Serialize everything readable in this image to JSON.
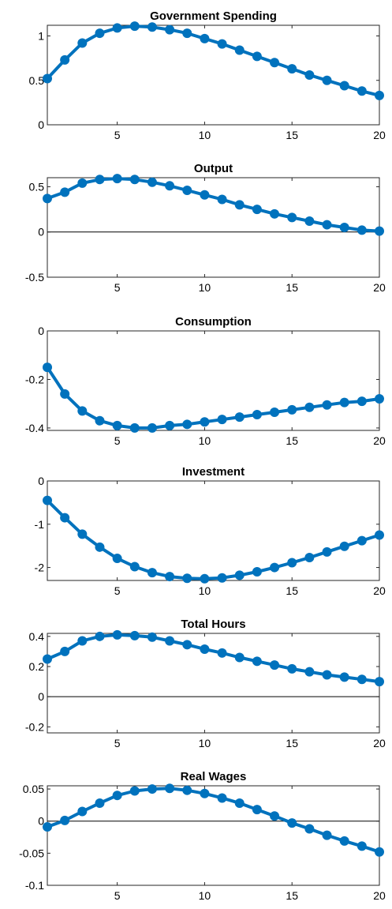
{
  "colors": {
    "series": "#0072BD",
    "axis": "#262626"
  },
  "chart_data": [
    {
      "type": "line",
      "title": "Government Spending",
      "xlim": [
        1,
        20
      ],
      "ylim": [
        0,
        1.12
      ],
      "xticks": [
        5,
        10,
        15,
        20
      ],
      "yticks": [
        0,
        0.5,
        1
      ],
      "ytick_labels": [
        "0",
        "0.5",
        "1"
      ],
      "zero_line": false,
      "x": [
        1,
        2,
        3,
        4,
        5,
        6,
        7,
        8,
        9,
        10,
        11,
        12,
        13,
        14,
        15,
        16,
        17,
        18,
        19,
        20
      ],
      "values": [
        0.52,
        0.73,
        0.92,
        1.03,
        1.09,
        1.11,
        1.1,
        1.07,
        1.03,
        0.97,
        0.91,
        0.84,
        0.77,
        0.7,
        0.63,
        0.56,
        0.5,
        0.44,
        0.38,
        0.33
      ]
    },
    {
      "type": "line",
      "title": "Output",
      "xlim": [
        1,
        20
      ],
      "ylim": [
        -0.5,
        0.6
      ],
      "xticks": [
        5,
        10,
        15,
        20
      ],
      "yticks": [
        -0.5,
        0,
        0.5
      ],
      "ytick_labels": [
        "-0.5",
        "0",
        "0.5"
      ],
      "zero_line": true,
      "x": [
        1,
        2,
        3,
        4,
        5,
        6,
        7,
        8,
        9,
        10,
        11,
        12,
        13,
        14,
        15,
        16,
        17,
        18,
        19,
        20
      ],
      "values": [
        0.37,
        0.44,
        0.54,
        0.58,
        0.59,
        0.58,
        0.55,
        0.51,
        0.46,
        0.41,
        0.36,
        0.3,
        0.25,
        0.2,
        0.16,
        0.12,
        0.08,
        0.05,
        0.02,
        0.01
      ]
    },
    {
      "type": "line",
      "title": "Consumption",
      "xlim": [
        1,
        20
      ],
      "ylim": [
        -0.41,
        0
      ],
      "xticks": [
        5,
        10,
        15,
        20
      ],
      "yticks": [
        -0.4,
        -0.2,
        0
      ],
      "ytick_labels": [
        "-0.4",
        "-0.2",
        "0"
      ],
      "zero_line": false,
      "x": [
        1,
        2,
        3,
        4,
        5,
        6,
        7,
        8,
        9,
        10,
        11,
        12,
        13,
        14,
        15,
        16,
        17,
        18,
        19,
        20
      ],
      "values": [
        -0.15,
        -0.26,
        -0.33,
        -0.37,
        -0.39,
        -0.4,
        -0.4,
        -0.39,
        -0.385,
        -0.375,
        -0.365,
        -0.355,
        -0.345,
        -0.335,
        -0.325,
        -0.315,
        -0.305,
        -0.295,
        -0.29,
        -0.28
      ]
    },
    {
      "type": "line",
      "title": "Investment",
      "xlim": [
        1,
        20
      ],
      "ylim": [
        -2.3,
        0
      ],
      "xticks": [
        5,
        10,
        15,
        20
      ],
      "yticks": [
        -2,
        -1,
        0
      ],
      "ytick_labels": [
        "-2",
        "-1",
        "0"
      ],
      "zero_line": false,
      "x": [
        1,
        2,
        3,
        4,
        5,
        6,
        7,
        8,
        9,
        10,
        11,
        12,
        13,
        14,
        15,
        16,
        17,
        18,
        19,
        20
      ],
      "values": [
        -0.45,
        -0.85,
        -1.23,
        -1.53,
        -1.79,
        -1.98,
        -2.12,
        -2.21,
        -2.25,
        -2.26,
        -2.24,
        -2.18,
        -2.1,
        -2.0,
        -1.89,
        -1.77,
        -1.64,
        -1.51,
        -1.38,
        -1.25
      ]
    },
    {
      "type": "line",
      "title": "Total Hours",
      "xlim": [
        1,
        20
      ],
      "ylim": [
        -0.24,
        0.42
      ],
      "xticks": [
        5,
        10,
        15,
        20
      ],
      "yticks": [
        -0.2,
        0,
        0.2,
        0.4
      ],
      "ytick_labels": [
        "-0.2",
        "0",
        "0.2",
        "0.4"
      ],
      "zero_line": true,
      "x": [
        1,
        2,
        3,
        4,
        5,
        6,
        7,
        8,
        9,
        10,
        11,
        12,
        13,
        14,
        15,
        16,
        17,
        18,
        19,
        20
      ],
      "values": [
        0.25,
        0.3,
        0.37,
        0.4,
        0.41,
        0.405,
        0.395,
        0.37,
        0.345,
        0.315,
        0.29,
        0.26,
        0.235,
        0.21,
        0.185,
        0.165,
        0.145,
        0.13,
        0.115,
        0.1
      ]
    },
    {
      "type": "line",
      "title": "Real Wages",
      "xlim": [
        1,
        20
      ],
      "ylim": [
        -0.1,
        0.055
      ],
      "xticks": [
        5,
        10,
        15,
        20
      ],
      "yticks": [
        -0.1,
        -0.05,
        0,
        0.05
      ],
      "ytick_labels": [
        "-0.1",
        "-0.05",
        "0",
        "0.05"
      ],
      "zero_line": true,
      "x": [
        1,
        2,
        3,
        4,
        5,
        6,
        7,
        8,
        9,
        10,
        11,
        12,
        13,
        14,
        15,
        16,
        17,
        18,
        19,
        20
      ],
      "values": [
        -0.009,
        0.001,
        0.015,
        0.028,
        0.04,
        0.047,
        0.05,
        0.051,
        0.048,
        0.043,
        0.036,
        0.028,
        0.018,
        0.008,
        -0.003,
        -0.012,
        -0.022,
        -0.031,
        -0.039,
        -0.048
      ]
    }
  ]
}
